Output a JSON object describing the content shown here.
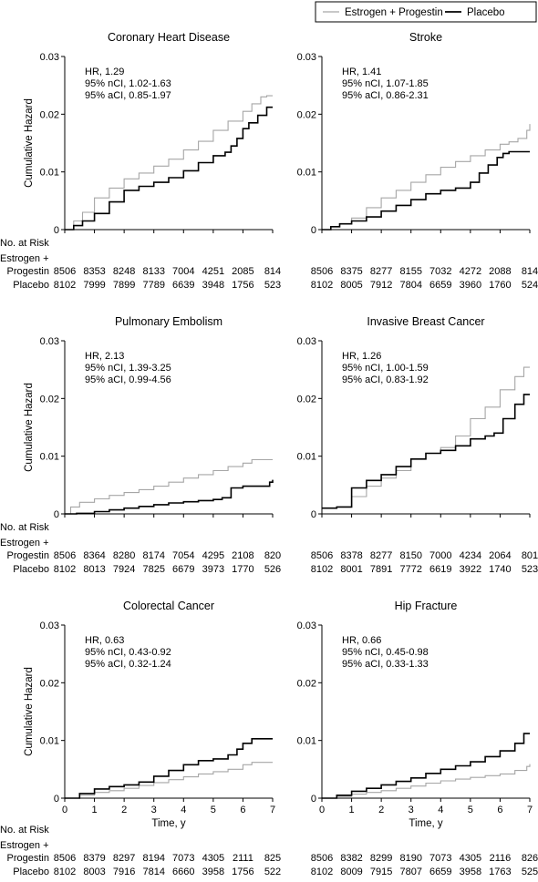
{
  "legend": {
    "items": [
      {
        "label": "Estrogen + Progestin",
        "color": "#a6a6a6"
      },
      {
        "label": "Placebo",
        "color": "#000000"
      }
    ]
  },
  "labels": {
    "y_axis": "Cumulative Hazard",
    "x_axis": "Time, y",
    "at_risk": "No. at Risk",
    "group1_line1": "Estrogen +",
    "group1_line2": "Progestin",
    "group2": "Placebo"
  },
  "chart_data": [
    {
      "type": "line",
      "title": "Coronary Heart Disease",
      "stats": [
        "HR, 1.29",
        "95% nCI, 1.02-1.63",
        "95% aCI, 0.85-1.97"
      ],
      "xlim": [
        0,
        7
      ],
      "ylim": [
        0,
        0.03
      ],
      "x_ticks": [
        0,
        1,
        2,
        3,
        4,
        5,
        6,
        7
      ],
      "y_ticks": [
        "0",
        "0.01",
        "0.02",
        "0.03"
      ],
      "show_x_labels": false,
      "xlabel": "",
      "ylabel": "Cumulative Hazard",
      "series": [
        {
          "name": "Estrogen + Progestin",
          "color": "#a6a6a6",
          "x": [
            0,
            0.3,
            0.6,
            1.0,
            1.5,
            2.0,
            2.5,
            3.0,
            3.5,
            4.0,
            4.5,
            5.0,
            5.5,
            6.0,
            6.3,
            6.6,
            6.8,
            7.0
          ],
          "y": [
            0,
            0.0015,
            0.003,
            0.0055,
            0.0072,
            0.0088,
            0.0098,
            0.011,
            0.0122,
            0.0138,
            0.0153,
            0.0172,
            0.0188,
            0.0205,
            0.0218,
            0.023,
            0.0232,
            0.0232
          ]
        },
        {
          "name": "Placebo",
          "color": "#000000",
          "x": [
            0,
            0.3,
            0.6,
            1.0,
            1.5,
            2.0,
            2.5,
            3.0,
            3.5,
            4.0,
            4.5,
            5.0,
            5.4,
            5.6,
            5.8,
            6.0,
            6.2,
            6.5,
            6.8,
            7.0
          ],
          "y": [
            0,
            0.0007,
            0.0015,
            0.0028,
            0.0048,
            0.0068,
            0.0075,
            0.0082,
            0.009,
            0.0102,
            0.0116,
            0.0128,
            0.0134,
            0.0145,
            0.0158,
            0.0175,
            0.0185,
            0.0198,
            0.0212,
            0.0212
          ]
        }
      ],
      "at_risk": {
        "group1": [
          "8506",
          "8353",
          "8248",
          "8133",
          "7004",
          "4251",
          "2085",
          "814"
        ],
        "group2": [
          "8102",
          "7999",
          "7899",
          "7789",
          "6639",
          "3948",
          "1756",
          "523"
        ]
      }
    },
    {
      "type": "line",
      "title": "Stroke",
      "stats": [
        "HR, 1.41",
        "95% nCI, 1.07-1.85",
        "95% aCI, 0.86-2.31"
      ],
      "xlim": [
        0,
        7
      ],
      "ylim": [
        0,
        0.03
      ],
      "x_ticks": [
        0,
        1,
        2,
        3,
        4,
        5,
        6,
        7
      ],
      "y_ticks": [
        "0",
        "0.01",
        "0.02",
        "0.03"
      ],
      "show_x_labels": false,
      "xlabel": "",
      "ylabel": "",
      "series": [
        {
          "name": "Estrogen + Progestin",
          "color": "#a6a6a6",
          "x": [
            0,
            0.3,
            0.6,
            1.0,
            1.5,
            2.0,
            2.5,
            3.0,
            3.5,
            4.0,
            4.5,
            5.0,
            5.5,
            6.0,
            6.3,
            6.6,
            6.9,
            7.0
          ],
          "y": [
            0,
            0.0005,
            0.001,
            0.002,
            0.0038,
            0.0055,
            0.0068,
            0.0082,
            0.0095,
            0.0108,
            0.0118,
            0.0128,
            0.0138,
            0.0148,
            0.0152,
            0.0158,
            0.0172,
            0.0183
          ]
        },
        {
          "name": "Placebo",
          "color": "#000000",
          "x": [
            0,
            0.3,
            0.6,
            1.0,
            1.5,
            2.0,
            2.5,
            3.0,
            3.5,
            4.0,
            4.5,
            5.0,
            5.3,
            5.6,
            5.9,
            6.1,
            6.3,
            7.0
          ],
          "y": [
            0,
            0.0005,
            0.001,
            0.0015,
            0.0022,
            0.0032,
            0.0042,
            0.0052,
            0.0062,
            0.0068,
            0.0072,
            0.0082,
            0.0098,
            0.0112,
            0.0125,
            0.0132,
            0.0135,
            0.0135
          ]
        }
      ],
      "at_risk": {
        "group1": [
          "8506",
          "8375",
          "8277",
          "8155",
          "7032",
          "4272",
          "2088",
          "814"
        ],
        "group2": [
          "8102",
          "8005",
          "7912",
          "7804",
          "6659",
          "3960",
          "1760",
          "524"
        ]
      }
    },
    {
      "type": "line",
      "title": "Pulmonary Embolism",
      "stats": [
        "HR, 2.13",
        "95% nCI, 1.39-3.25",
        "95% aCI, 0.99-4.56"
      ],
      "xlim": [
        0,
        7
      ],
      "ylim": [
        0,
        0.03
      ],
      "x_ticks": [
        0,
        1,
        2,
        3,
        4,
        5,
        6,
        7
      ],
      "y_ticks": [
        "0",
        "0.01",
        "0.02",
        "0.03"
      ],
      "show_x_labels": false,
      "xlabel": "",
      "ylabel": "Cumulative Hazard",
      "series": [
        {
          "name": "Estrogen + Progestin",
          "color": "#a6a6a6",
          "x": [
            0,
            0.2,
            0.5,
            1.0,
            1.5,
            2.0,
            2.5,
            3.0,
            3.5,
            4.0,
            4.5,
            5.0,
            5.5,
            6.0,
            6.3,
            7.0
          ],
          "y": [
            0,
            0.0012,
            0.002,
            0.0026,
            0.0032,
            0.0037,
            0.0042,
            0.0048,
            0.0055,
            0.0062,
            0.0068,
            0.0075,
            0.0082,
            0.0088,
            0.0094,
            0.0094
          ]
        },
        {
          "name": "Placebo",
          "color": "#000000",
          "x": [
            0,
            0.4,
            1.0,
            1.5,
            2.0,
            2.5,
            3.0,
            3.5,
            4.0,
            4.5,
            5.0,
            5.3,
            5.6,
            6.0,
            6.5,
            6.9,
            7.0
          ],
          "y": [
            0,
            0.0001,
            0.0004,
            0.0007,
            0.001,
            0.0013,
            0.0016,
            0.0019,
            0.0021,
            0.0023,
            0.0025,
            0.0028,
            0.0045,
            0.0048,
            0.0048,
            0.0055,
            0.0059
          ]
        }
      ],
      "at_risk": {
        "group1": [
          "8506",
          "8364",
          "8280",
          "8174",
          "7054",
          "4295",
          "2108",
          "820"
        ],
        "group2": [
          "8102",
          "8013",
          "7924",
          "7825",
          "6679",
          "3973",
          "1770",
          "526"
        ]
      }
    },
    {
      "type": "line",
      "title": "Invasive Breast Cancer",
      "stats": [
        "HR, 1.26",
        "95% nCI, 1.00-1.59",
        "95% aCI, 0.83-1.92"
      ],
      "xlim": [
        0,
        7
      ],
      "ylim": [
        0,
        0.03
      ],
      "x_ticks": [
        0,
        1,
        2,
        3,
        4,
        5,
        6,
        7
      ],
      "y_ticks": [
        "0",
        "0.01",
        "0.02",
        "0.03"
      ],
      "show_x_labels": false,
      "xlabel": "",
      "ylabel": "",
      "series": [
        {
          "name": "Estrogen + Progestin",
          "color": "#a6a6a6",
          "x": [
            0,
            0.5,
            1.0,
            1.5,
            2.0,
            2.5,
            3.0,
            3.5,
            4.0,
            4.5,
            5.0,
            5.5,
            6.0,
            6.5,
            6.8,
            7.0
          ],
          "y": [
            0.001,
            0.0012,
            0.003,
            0.0048,
            0.0062,
            0.0075,
            0.0095,
            0.0105,
            0.0115,
            0.0135,
            0.0165,
            0.0185,
            0.0215,
            0.0238,
            0.0254,
            0.0254
          ]
        },
        {
          "name": "Placebo",
          "color": "#000000",
          "x": [
            0,
            0.5,
            1.0,
            1.5,
            2.0,
            2.5,
            3.0,
            3.5,
            4.0,
            4.5,
            5.0,
            5.5,
            5.8,
            6.1,
            6.5,
            6.8,
            7.0
          ],
          "y": [
            0.001,
            0.0012,
            0.0045,
            0.0058,
            0.0068,
            0.0082,
            0.0095,
            0.0105,
            0.011,
            0.0118,
            0.013,
            0.0135,
            0.014,
            0.0165,
            0.019,
            0.0207,
            0.0207
          ]
        }
      ],
      "at_risk": {
        "group1": [
          "8506",
          "8378",
          "8277",
          "8150",
          "7000",
          "4234",
          "2064",
          "801"
        ],
        "group2": [
          "8102",
          "8001",
          "7891",
          "7772",
          "6619",
          "3922",
          "1740",
          "523"
        ]
      }
    },
    {
      "type": "line",
      "title": "Colorectal Cancer",
      "stats": [
        "HR, 0.63",
        "95% nCI, 0.43-0.92",
        "95% aCI, 0.32-1.24"
      ],
      "xlim": [
        0,
        7
      ],
      "ylim": [
        0,
        0.03
      ],
      "x_ticks": [
        0,
        1,
        2,
        3,
        4,
        5,
        6,
        7
      ],
      "y_ticks": [
        "0",
        "0.01",
        "0.02",
        "0.03"
      ],
      "show_x_labels": true,
      "xlabel": "Time, y",
      "ylabel": "Cumulative Hazard",
      "series": [
        {
          "name": "Estrogen + Progestin",
          "color": "#a6a6a6",
          "x": [
            0,
            0.5,
            1.0,
            1.5,
            2.0,
            2.5,
            3.0,
            3.5,
            4.0,
            4.5,
            5.0,
            5.5,
            6.0,
            6.3,
            7.0
          ],
          "y": [
            0,
            0.0005,
            0.001,
            0.0013,
            0.0017,
            0.0022,
            0.0027,
            0.0032,
            0.0037,
            0.0042,
            0.0046,
            0.005,
            0.0058,
            0.0062,
            0.0062
          ]
        },
        {
          "name": "Placebo",
          "color": "#000000",
          "x": [
            0,
            0.5,
            1.0,
            1.5,
            2.0,
            2.5,
            3.0,
            3.5,
            4.0,
            4.5,
            5.0,
            5.5,
            5.8,
            6.0,
            6.3,
            7.0
          ],
          "y": [
            0,
            0.0008,
            0.0016,
            0.002,
            0.0023,
            0.0028,
            0.0038,
            0.0048,
            0.0058,
            0.0065,
            0.0068,
            0.0075,
            0.0085,
            0.0095,
            0.0103,
            0.0103
          ]
        }
      ],
      "at_risk": {
        "group1": [
          "8506",
          "8379",
          "8297",
          "8194",
          "7073",
          "4305",
          "2111",
          "825"
        ],
        "group2": [
          "8102",
          "8003",
          "7916",
          "7814",
          "6660",
          "3958",
          "1756",
          "522"
        ]
      }
    },
    {
      "type": "line",
      "title": "Hip Fracture",
      "stats": [
        "HR, 0.66",
        "95% nCI, 0.45-0.98",
        "95% aCI, 0.33-1.33"
      ],
      "xlim": [
        0,
        7
      ],
      "ylim": [
        0,
        0.03
      ],
      "x_ticks": [
        0,
        1,
        2,
        3,
        4,
        5,
        6,
        7
      ],
      "y_ticks": [
        "0",
        "0.01",
        "0.02",
        "0.03"
      ],
      "show_x_labels": true,
      "xlabel": "Time, y",
      "ylabel": "",
      "series": [
        {
          "name": "Estrogen + Progestin",
          "color": "#a6a6a6",
          "x": [
            0,
            0.5,
            1.0,
            1.5,
            2.0,
            2.5,
            3.0,
            3.5,
            4.0,
            4.5,
            5.0,
            5.5,
            6.0,
            6.5,
            6.9,
            7.0
          ],
          "y": [
            0,
            0.0003,
            0.0007,
            0.001,
            0.0013,
            0.0017,
            0.0021,
            0.0026,
            0.003,
            0.0033,
            0.0036,
            0.0039,
            0.0042,
            0.0048,
            0.0055,
            0.0059
          ]
        },
        {
          "name": "Placebo",
          "color": "#000000",
          "x": [
            0,
            0.5,
            1.0,
            1.5,
            2.0,
            2.5,
            3.0,
            3.5,
            4.0,
            4.5,
            5.0,
            5.5,
            6.0,
            6.5,
            6.8,
            7.0
          ],
          "y": [
            0,
            0.0005,
            0.0012,
            0.0017,
            0.0023,
            0.0029,
            0.0035,
            0.0043,
            0.005,
            0.0056,
            0.0063,
            0.0072,
            0.0082,
            0.0095,
            0.0112,
            0.0112
          ]
        }
      ],
      "at_risk": {
        "group1": [
          "8506",
          "8382",
          "8299",
          "8190",
          "7073",
          "4305",
          "2116",
          "826"
        ],
        "group2": [
          "8102",
          "8009",
          "7915",
          "7807",
          "6659",
          "3958",
          "1763",
          "525"
        ]
      }
    }
  ]
}
